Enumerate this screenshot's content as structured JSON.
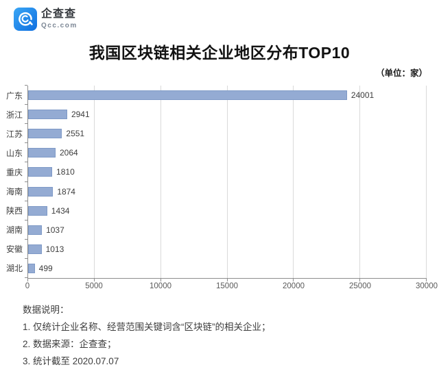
{
  "header": {
    "logo_name": "企查查",
    "logo_domain": "Qcc.com",
    "title": "我国区块链相关企业地区分布TOP10",
    "unit_label": "（单位：家）"
  },
  "chart_data": {
    "type": "bar",
    "orientation": "horizontal",
    "title": "我国区块链相关企业地区分布TOP10",
    "unit": "家",
    "categories": [
      "广东",
      "浙江",
      "江苏",
      "山东",
      "重庆",
      "海南",
      "陕西",
      "湖南",
      "安徽",
      "湖北"
    ],
    "values": [
      24001,
      2941,
      2551,
      2064,
      1810,
      1874,
      1434,
      1037,
      1013,
      499
    ],
    "value_labels_shown": true,
    "xlim": [
      0,
      30000
    ],
    "x_ticks": [
      0,
      5000,
      10000,
      15000,
      20000,
      25000,
      30000
    ],
    "grid": true,
    "legend": "none",
    "bar_color": "#94abd3",
    "bar_border_color": "#7e99c6",
    "gridline_color": "#d9d9d9",
    "axis_color": "#8c8c8c"
  },
  "footer": {
    "heading": "数据说明：",
    "notes": [
      "1. 仅统计企业名称、经营范围关键词含“区块链”的相关企业；",
      "2. 数据来源：企查查；",
      "3. 统计截至 2020.07.07"
    ]
  },
  "colors": {
    "brand_blue_top": "#38a1f3",
    "brand_blue_bottom": "#1170e4",
    "title_text": "#121212",
    "body_text": "#3d3d3d",
    "tick_text": "#595959"
  }
}
